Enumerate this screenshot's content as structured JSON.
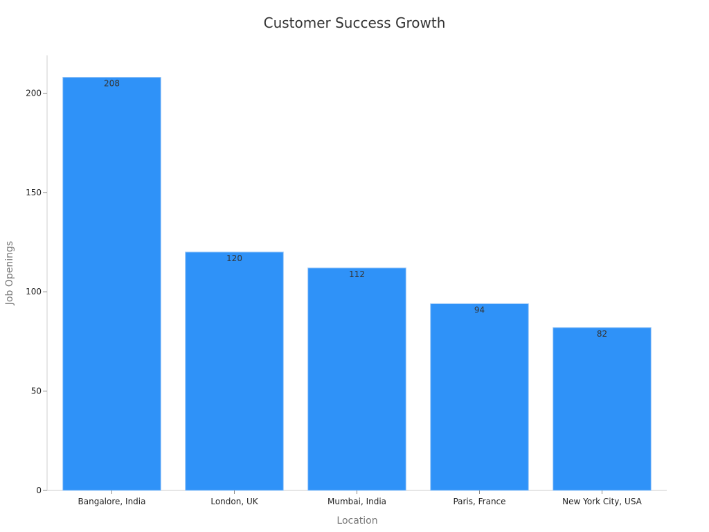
{
  "chart_data": {
    "type": "bar",
    "title": "Customer Success Growth",
    "xlabel": "Location",
    "ylabel": "Job Openings",
    "categories": [
      "Bangalore, India",
      "London, UK",
      "Mumbai, India",
      "Paris, France",
      "New York City, USA"
    ],
    "values": [
      208,
      120,
      112,
      94,
      82
    ],
    "data_labels": [
      "208",
      "120",
      "112",
      "94",
      "82"
    ],
    "ylim": [
      0,
      219
    ],
    "yticks": [
      0,
      50,
      100,
      150,
      200
    ],
    "ytick_labels": [
      "0",
      "50",
      "100",
      "150",
      "200"
    ],
    "grid": false,
    "legend": "none",
    "bar_color": "#2f92f8"
  }
}
